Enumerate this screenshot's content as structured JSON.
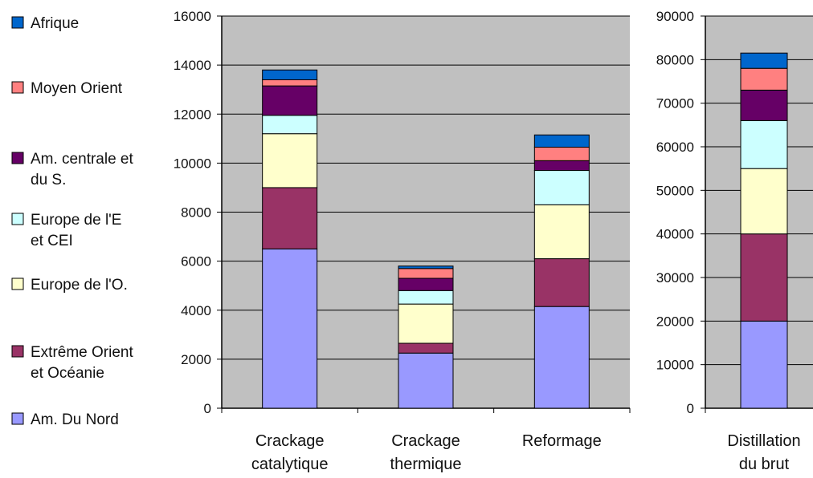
{
  "chart_data": [
    {
      "type": "bar",
      "stacked": true,
      "categories": [
        [
          "Crackage",
          "catalytique"
        ],
        [
          "Crackage",
          "thermique"
        ],
        [
          "Reformage"
        ]
      ],
      "ylim": [
        0,
        16000
      ],
      "yticks": [
        0,
        2000,
        4000,
        6000,
        8000,
        10000,
        12000,
        14000,
        16000
      ],
      "grid": true,
      "series": [
        {
          "name": "Am. Du Nord",
          "color": "#9999ff",
          "values": [
            6500,
            2250,
            4150
          ]
        },
        {
          "name": "Extrême Orient et Océanie",
          "color": "#993366",
          "values": [
            2500,
            400,
            1950
          ]
        },
        {
          "name": "Europe de l'O.",
          "color": "#ffffcc",
          "values": [
            2200,
            1600,
            2200
          ]
        },
        {
          "name": "Europe de l'E et CEI",
          "color": "#ccffff",
          "values": [
            750,
            550,
            1400
          ]
        },
        {
          "name": "Am. centrale et du S.",
          "color": "#660066",
          "values": [
            1200,
            500,
            400
          ]
        },
        {
          "name": "Moyen Orient",
          "color": "#ff8080",
          "values": [
            250,
            400,
            550
          ]
        },
        {
          "name": "Afrique",
          "color": "#0066cc",
          "values": [
            400,
            100,
            500
          ]
        }
      ]
    },
    {
      "type": "bar",
      "stacked": true,
      "categories": [
        [
          "Distillation",
          "du brut"
        ]
      ],
      "ylim": [
        0,
        90000
      ],
      "yticks": [
        0,
        10000,
        20000,
        30000,
        40000,
        50000,
        60000,
        70000,
        80000,
        90000
      ],
      "grid": true,
      "series": [
        {
          "name": "Am. Du Nord",
          "color": "#9999ff",
          "values": [
            20000
          ]
        },
        {
          "name": "Extrême Orient et Océanie",
          "color": "#993366",
          "values": [
            20000
          ]
        },
        {
          "name": "Europe de l'O.",
          "color": "#ffffcc",
          "values": [
            15000
          ]
        },
        {
          "name": "Europe de l'E et CEI",
          "color": "#ccffff",
          "values": [
            11000
          ]
        },
        {
          "name": "Am. centrale et du S.",
          "color": "#660066",
          "values": [
            7000
          ]
        },
        {
          "name": "Moyen Orient",
          "color": "#ff8080",
          "values": [
            5000
          ]
        },
        {
          "name": "Afrique",
          "color": "#0066cc",
          "values": [
            3500
          ]
        }
      ]
    }
  ],
  "legend": {
    "placement": "left",
    "entries": [
      {
        "lines": [
          "Afrique"
        ],
        "color": "#0066cc"
      },
      {
        "lines": [
          "Moyen Orient"
        ],
        "color": "#ff8080"
      },
      {
        "lines": [
          "Am. centrale et",
          "du S."
        ],
        "color": "#660066"
      },
      {
        "lines": [
          "Europe de l'E",
          "et CEI"
        ],
        "color": "#ccffff"
      },
      {
        "lines": [
          "Europe de l'O."
        ],
        "color": "#ffffcc"
      },
      {
        "lines": [
          "Extrême Orient",
          "et Océanie"
        ],
        "color": "#993366"
      },
      {
        "lines": [
          "Am. Du Nord"
        ],
        "color": "#9999ff"
      }
    ]
  },
  "colors": {
    "plot_background": "#c0c0c0",
    "gridline": "#000000"
  }
}
